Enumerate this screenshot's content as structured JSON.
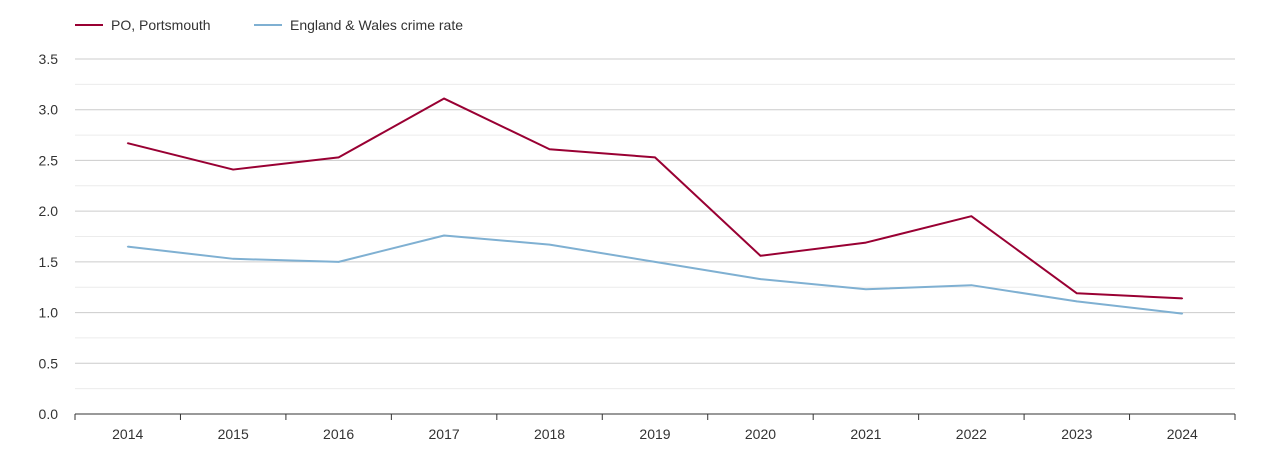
{
  "chart_data": {
    "type": "line",
    "title": "",
    "xlabel": "",
    "ylabel": "",
    "categories": [
      "2014",
      "2015",
      "2016",
      "2017",
      "2018",
      "2019",
      "2020",
      "2021",
      "2022",
      "2023",
      "2024"
    ],
    "ylim": [
      0,
      3.5
    ],
    "yticks": [
      "0.0",
      "0.5",
      "1.0",
      "1.5",
      "2.0",
      "2.5",
      "3.0",
      "3.5"
    ],
    "grid": true,
    "legend_position": "top-left",
    "series": [
      {
        "name": "PO, Portsmouth",
        "color": "#990033",
        "values": [
          2.67,
          2.41,
          2.53,
          3.11,
          2.61,
          2.53,
          1.56,
          1.69,
          1.95,
          1.19,
          1.14
        ]
      },
      {
        "name": "England & Wales crime rate",
        "color": "#7fb0d2",
        "values": [
          1.65,
          1.53,
          1.5,
          1.76,
          1.67,
          1.5,
          1.33,
          1.23,
          1.27,
          1.11,
          0.99
        ]
      }
    ]
  }
}
